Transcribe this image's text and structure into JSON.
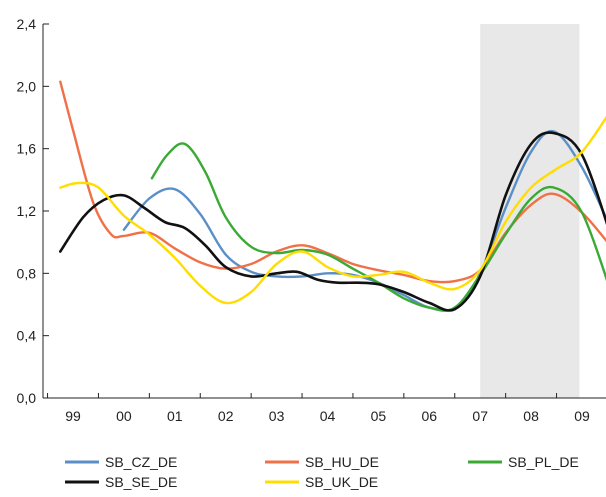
{
  "chart_data": {
    "type": "line",
    "x_tick_labels": [
      "99",
      "00",
      "01",
      "02",
      "03",
      "04",
      "05",
      "06",
      "07",
      "08",
      "09"
    ],
    "y_tick_labels": [
      "0,0",
      "0,4",
      "0,8",
      "1,2",
      "1,6",
      "2,0",
      "2,4"
    ],
    "ylim": [
      0,
      2.4
    ],
    "xlim": [
      1998.7,
      2009.65
    ],
    "grid": false,
    "legend_position": "bottom",
    "shaded_region": {
      "x_from": 2007.0,
      "x_to": 2008.95,
      "color": "#e8e8e8"
    },
    "series": [
      {
        "name": "SB_CZ_DE",
        "color": "#5b8fc7",
        "points": [
          [
            2000.0,
            1.08
          ],
          [
            2000.5,
            1.28
          ],
          [
            2001.0,
            1.34
          ],
          [
            2001.5,
            1.18
          ],
          [
            2002.0,
            0.92
          ],
          [
            2002.5,
            0.81
          ],
          [
            2003.0,
            0.78
          ],
          [
            2003.5,
            0.78
          ],
          [
            2004.0,
            0.8
          ],
          [
            2004.5,
            0.79
          ],
          [
            2005.0,
            0.74
          ],
          [
            2005.5,
            0.66
          ],
          [
            2006.0,
            0.58
          ],
          [
            2006.5,
            0.58
          ],
          [
            2007.0,
            0.8
          ],
          [
            2007.5,
            1.22
          ],
          [
            2008.0,
            1.58
          ],
          [
            2008.45,
            1.71
          ],
          [
            2009.0,
            1.48
          ],
          [
            2009.55,
            1.1
          ]
        ]
      },
      {
        "name": "SB_HU_DE",
        "color": "#f07048",
        "points": [
          [
            1998.75,
            2.03
          ],
          [
            1999.0,
            1.72
          ],
          [
            1999.4,
            1.25
          ],
          [
            1999.75,
            1.05
          ],
          [
            2000.0,
            1.04
          ],
          [
            2000.5,
            1.06
          ],
          [
            2001.0,
            0.96
          ],
          [
            2001.5,
            0.87
          ],
          [
            2002.0,
            0.83
          ],
          [
            2002.5,
            0.86
          ],
          [
            2003.0,
            0.94
          ],
          [
            2003.5,
            0.98
          ],
          [
            2004.0,
            0.93
          ],
          [
            2004.5,
            0.86
          ],
          [
            2005.0,
            0.82
          ],
          [
            2005.5,
            0.79
          ],
          [
            2006.0,
            0.75
          ],
          [
            2006.5,
            0.75
          ],
          [
            2007.0,
            0.82
          ],
          [
            2007.5,
            1.06
          ],
          [
            2008.0,
            1.24
          ],
          [
            2008.45,
            1.31
          ],
          [
            2009.0,
            1.19
          ],
          [
            2009.6,
            0.96
          ]
        ]
      },
      {
        "name": "SB_PL_DE",
        "color": "#3aaa35",
        "points": [
          [
            2000.55,
            1.41
          ],
          [
            2000.85,
            1.56
          ],
          [
            2001.2,
            1.63
          ],
          [
            2001.6,
            1.45
          ],
          [
            2002.0,
            1.16
          ],
          [
            2002.5,
            0.97
          ],
          [
            2003.0,
            0.93
          ],
          [
            2003.5,
            0.95
          ],
          [
            2004.0,
            0.92
          ],
          [
            2004.5,
            0.83
          ],
          [
            2005.0,
            0.74
          ],
          [
            2005.5,
            0.64
          ],
          [
            2006.0,
            0.58
          ],
          [
            2006.5,
            0.58
          ],
          [
            2007.0,
            0.79
          ],
          [
            2007.5,
            1.05
          ],
          [
            2008.0,
            1.28
          ],
          [
            2008.45,
            1.35
          ],
          [
            2009.0,
            1.19
          ],
          [
            2009.6,
            0.65
          ]
        ]
      },
      {
        "name": "SB_SE_DE",
        "color": "#111111",
        "points": [
          [
            1998.75,
            0.94
          ],
          [
            1999.2,
            1.16
          ],
          [
            1999.6,
            1.27
          ],
          [
            2000.0,
            1.3
          ],
          [
            2000.4,
            1.22
          ],
          [
            2000.8,
            1.13
          ],
          [
            2001.2,
            1.09
          ],
          [
            2001.6,
            0.98
          ],
          [
            2002.0,
            0.84
          ],
          [
            2002.5,
            0.78
          ],
          [
            2003.0,
            0.8
          ],
          [
            2003.4,
            0.81
          ],
          [
            2003.8,
            0.76
          ],
          [
            2004.2,
            0.74
          ],
          [
            2004.6,
            0.74
          ],
          [
            2005.0,
            0.73
          ],
          [
            2005.5,
            0.68
          ],
          [
            2006.0,
            0.61
          ],
          [
            2006.5,
            0.57
          ],
          [
            2007.0,
            0.78
          ],
          [
            2007.5,
            1.3
          ],
          [
            2008.0,
            1.63
          ],
          [
            2008.45,
            1.7
          ],
          [
            2009.0,
            1.56
          ],
          [
            2009.6,
            1.01
          ]
        ]
      },
      {
        "name": "SB_UK_DE",
        "color": "#ffdd00",
        "points": [
          [
            1998.75,
            1.35
          ],
          [
            1999.1,
            1.38
          ],
          [
            1999.5,
            1.35
          ],
          [
            2000.0,
            1.17
          ],
          [
            2000.5,
            1.05
          ],
          [
            2001.0,
            0.9
          ],
          [
            2001.5,
            0.72
          ],
          [
            2002.0,
            0.61
          ],
          [
            2002.5,
            0.68
          ],
          [
            2003.0,
            0.86
          ],
          [
            2003.5,
            0.94
          ],
          [
            2004.0,
            0.84
          ],
          [
            2004.5,
            0.78
          ],
          [
            2005.0,
            0.79
          ],
          [
            2005.5,
            0.81
          ],
          [
            2006.0,
            0.74
          ],
          [
            2006.5,
            0.7
          ],
          [
            2007.0,
            0.82
          ],
          [
            2007.5,
            1.13
          ],
          [
            2008.0,
            1.35
          ],
          [
            2008.5,
            1.47
          ],
          [
            2009.0,
            1.58
          ],
          [
            2009.6,
            1.86
          ]
        ]
      }
    ]
  }
}
